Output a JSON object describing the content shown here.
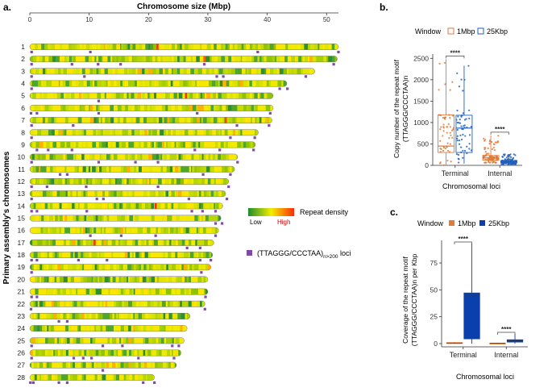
{
  "chart_data": [
    {
      "type": "heatmap",
      "panel_label": "a.",
      "title": "Chromosome size (Mbp)",
      "xlabel": "Chromosome size (Mbp)",
      "ylabel": "Primary assembly's chromosomes",
      "xlim": [
        0,
        52
      ],
      "x_ticks": [
        0,
        10,
        20,
        30,
        40,
        50
      ],
      "chromosomes": [
        {
          "name": "1",
          "size": 52.0,
          "loci": [
            0.3,
            10.2,
            38.4,
            52.0
          ],
          "hot": [
            [
              21.5,
              "#ff3300"
            ]
          ]
        },
        {
          "name": "2",
          "size": 51.8,
          "loci": [
            0.3,
            7.1,
            11.5,
            15.3,
            29.4,
            51.2
          ],
          "hot": [
            [
              29.4,
              "#ff5a00"
            ]
          ]
        },
        {
          "name": "3",
          "size": 48.0,
          "loci": [
            0.3,
            9.2,
            31.5,
            32.6,
            46.5
          ],
          "hot": []
        },
        {
          "name": "4",
          "size": 43.3,
          "loci": [
            0.3,
            42.1,
            43.4
          ],
          "hot": []
        },
        {
          "name": "5",
          "size": 41.0,
          "loci": [
            11.6
          ],
          "hot": [
            [
              26.3,
              "#ff3300"
            ]
          ]
        },
        {
          "name": "6",
          "size": 41.0,
          "loci": [
            0.2,
            1.2,
            11.6,
            28.2,
            40.5
          ],
          "hot": []
        },
        {
          "name": "7",
          "size": 40.8,
          "loci": [
            0.3,
            7.3,
            34.9,
            40.3
          ],
          "hot": [
            [
              33.0,
              "#ff4500"
            ]
          ]
        },
        {
          "name": "8",
          "size": 38.5,
          "loci": [
            0.3,
            33.8,
            37.9
          ],
          "hot": []
        },
        {
          "name": "9",
          "size": 38.0,
          "loci": [
            1.2,
            3.1,
            7.1,
            27.8,
            32.0,
            37.7
          ],
          "hot": []
        },
        {
          "name": "10",
          "size": 35.0,
          "loci": [
            0.3,
            11.6,
            17.8,
            21.6,
            35.0
          ],
          "hot": []
        },
        {
          "name": "11",
          "size": 34.5,
          "loci": [
            5.1,
            6.3,
            29.2,
            33.8
          ],
          "hot": []
        },
        {
          "name": "12",
          "size": 33.5,
          "loci": [
            0.3,
            2.9,
            9.5,
            21.6,
            33.5
          ],
          "hot": []
        },
        {
          "name": "13",
          "size": 33.0,
          "loci": [
            0.3,
            11.3,
            12.4,
            26.8,
            33.2
          ],
          "hot": []
        },
        {
          "name": "14",
          "size": 32.5,
          "loci": [
            0.3,
            1.2,
            9.6,
            27.3,
            29.1,
            31.3
          ],
          "hot": [
            [
              21.2,
              "#ff3300"
            ]
          ]
        },
        {
          "name": "15",
          "size": 32.2,
          "loci": [
            31.3,
            32.4
          ],
          "hot": []
        },
        {
          "name": "16",
          "size": 31.8,
          "loci": [
            10.2,
            15.4,
            21.2,
            31.3
          ],
          "hot": []
        },
        {
          "name": "17",
          "size": 31.0,
          "loci": [
            26.5,
            28.7
          ],
          "hot": [
            [
              10.9,
              "#ff3300"
            ]
          ]
        },
        {
          "name": "18",
          "size": 30.8,
          "loci": [
            0.3,
            1.2,
            8.2,
            13.0,
            28.7,
            30.5
          ],
          "hot": []
        },
        {
          "name": "19",
          "size": 30.5,
          "loci": [
            0.3,
            28.9
          ],
          "hot": []
        },
        {
          "name": "20",
          "size": 30.0,
          "loci": [],
          "hot": []
        },
        {
          "name": "21",
          "size": 30.0,
          "loci": [
            0.3,
            1.2,
            29.6
          ],
          "hot": []
        },
        {
          "name": "22",
          "size": 29.5,
          "loci": [
            0.2,
            29.5
          ],
          "hot": []
        },
        {
          "name": "23",
          "size": 27.0,
          "loci": [
            4.9,
            6.3
          ],
          "hot": []
        },
        {
          "name": "24",
          "size": 26.5,
          "loci": [],
          "hot": []
        },
        {
          "name": "25",
          "size": 26.0,
          "loci": [
            0.3,
            12.3,
            15.6,
            24.0,
            25.1
          ],
          "hot": []
        },
        {
          "name": "26",
          "size": 25.5,
          "loci": [
            0.3,
            7.4,
            9.0,
            10.4,
            18.3,
            24.3
          ],
          "hot": []
        },
        {
          "name": "27",
          "size": 24.7,
          "loci": [
            12.3
          ],
          "hot": []
        },
        {
          "name": "28",
          "size": 21.0,
          "loci": [
            0.1,
            0.6,
            4.9,
            6.3,
            19.1,
            21.0
          ],
          "hot": []
        }
      ],
      "legend": {
        "density_title": "Repeat density",
        "low": "Low",
        "high": "High",
        "loci_label_prefix": "(TTAGGG/CCCTAA)",
        "loci_label_sub": "n>200",
        "loci_label_suffix": " loci"
      },
      "colors": {
        "low": "#1e8c2e",
        "mid": "#f2ee00",
        "high": "#ff2a00",
        "loci": "#7f4ba2"
      }
    },
    {
      "type": "box",
      "panel_label": "b.",
      "title": "",
      "xlabel": "Chromosomal loci",
      "ylabel_line1": "Copy number of the repeat motif",
      "ylabel_line2": "(TTAGGG/CCCTAA)n",
      "ylim": [
        0,
        2600
      ],
      "y_ticks": [
        0,
        500,
        1000,
        1500,
        2000,
        2500
      ],
      "categories": [
        "Terminal",
        "Internal"
      ],
      "legend_title": "Window",
      "series": [
        {
          "name": "1Mbp",
          "color": "#e07b39",
          "boxes": [
            {
              "q1": 300,
              "median": 450,
              "q3": 1180,
              "low": 0,
              "high": 2480
            },
            {
              "q1": 120,
              "median": 175,
              "q3": 230,
              "low": 60,
              "high": 700
            }
          ]
        },
        {
          "name": "25Kbp",
          "color": "#1f5fbf",
          "boxes": [
            {
              "q1": 300,
              "median": 870,
              "q3": 1170,
              "low": 40,
              "high": 2330
            },
            {
              "q1": 55,
              "median": 80,
              "q3": 110,
              "low": 20,
              "high": 260
            }
          ]
        }
      ],
      "significance": [
        "****",
        "****"
      ]
    },
    {
      "type": "box",
      "panel_label": "c.",
      "title": "",
      "xlabel": "Chromosomal loci",
      "ylabel_line1": "Coverage of the repeat motif",
      "ylabel_line2": "(TTAGGG/CCCTAA)n per Kbp",
      "ylim": [
        -3,
        96
      ],
      "y_ticks": [
        0,
        25,
        50,
        75
      ],
      "categories": [
        "Terminal",
        "Internal"
      ],
      "legend_title": "Window",
      "series": [
        {
          "name": "1Mbp",
          "color": "#e07b39",
          "boxes": [
            {
              "q1": 0.2,
              "median": 0.5,
              "q3": 0.9,
              "low": 0,
              "high": 1.5
            },
            {
              "q1": 0.1,
              "median": 0.2,
              "q3": 0.4,
              "low": 0,
              "high": 0.8
            }
          ]
        },
        {
          "name": "25Kbp",
          "color": "#0a3fae",
          "boxes": [
            {
              "q1": 4.5,
              "median": 45,
              "q3": 47,
              "low": 0,
              "high": 93
            },
            {
              "q1": 1.5,
              "median": 2.5,
              "q3": 3.5,
              "low": 0,
              "high": 9
            }
          ]
        }
      ],
      "significance": [
        "****",
        "****"
      ]
    }
  ]
}
